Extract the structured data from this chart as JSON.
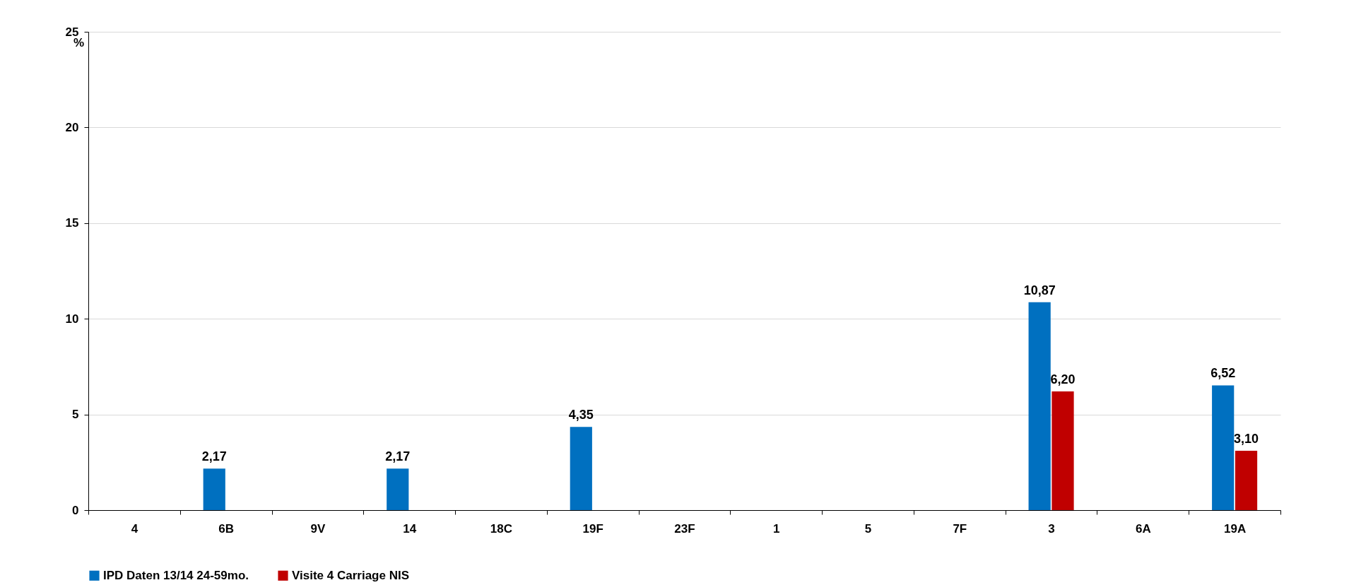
{
  "chart_data": {
    "type": "bar",
    "ylabel": "%",
    "categories": [
      "4",
      "6B",
      "9V",
      "14",
      "18C",
      "19F",
      "23F",
      "1",
      "5",
      "7F",
      "3",
      "6A",
      "19A"
    ],
    "series": [
      {
        "name": "IPD Daten 13/14 24-59mo.",
        "color": "#0070c0",
        "values": [
          null,
          2.17,
          null,
          2.17,
          null,
          4.35,
          null,
          null,
          null,
          null,
          10.87,
          null,
          6.52
        ],
        "value_labels": [
          null,
          "2,17",
          null,
          "2,17",
          null,
          "4,35",
          null,
          null,
          null,
          null,
          "10,87",
          null,
          "6,52"
        ]
      },
      {
        "name": "Visite 4 Carriage NIS",
        "color": "#c00000",
        "values": [
          null,
          null,
          null,
          null,
          null,
          null,
          null,
          null,
          null,
          null,
          6.2,
          null,
          3.1
        ],
        "value_labels": [
          null,
          null,
          null,
          null,
          null,
          null,
          null,
          null,
          null,
          null,
          "6,20",
          null,
          "3,10"
        ]
      }
    ],
    "ylim": [
      0,
      25
    ],
    "yticks": [
      0,
      5,
      10,
      15,
      20,
      25
    ],
    "grid": "y",
    "legend": "bottom"
  }
}
